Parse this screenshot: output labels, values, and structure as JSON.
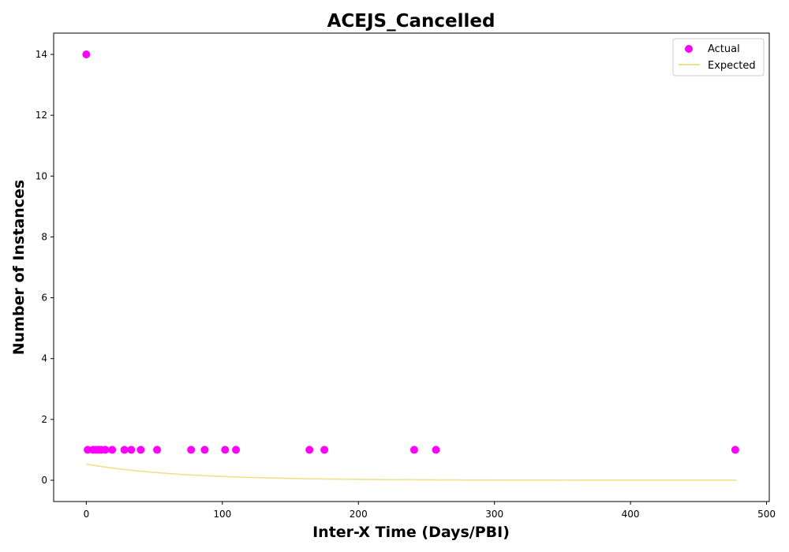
{
  "chart_data": {
    "type": "scatter",
    "title": "ACEJS_Cancelled",
    "xlabel": "Inter-X Time (Days/PBI)",
    "ylabel": "Number of Instances",
    "xlim": [
      -24,
      502
    ],
    "ylim": [
      -0.7,
      14.7
    ],
    "xticks": [
      0,
      100,
      200,
      300,
      400,
      500
    ],
    "yticks": [
      0,
      2,
      4,
      6,
      8,
      10,
      12,
      14
    ],
    "grid": false,
    "legend_position": "top-right",
    "series": [
      {
        "name": "Actual",
        "kind": "scatter",
        "color": "#ff00ff",
        "points": [
          [
            0,
            14
          ],
          [
            1,
            1
          ],
          [
            5,
            1
          ],
          [
            7,
            1
          ],
          [
            9,
            1
          ],
          [
            11,
            1
          ],
          [
            14,
            1
          ],
          [
            19,
            1
          ],
          [
            28,
            1
          ],
          [
            33,
            1
          ],
          [
            40,
            1
          ],
          [
            52,
            1
          ],
          [
            77,
            1
          ],
          [
            87,
            1
          ],
          [
            102,
            1
          ],
          [
            110,
            1
          ],
          [
            164,
            1
          ],
          [
            175,
            1
          ],
          [
            241,
            1
          ],
          [
            257,
            1
          ],
          [
            477,
            1
          ]
        ]
      },
      {
        "name": "Expected",
        "kind": "line",
        "color": "#f0e08a",
        "curve": {
          "model": "exponential",
          "a": 0.53,
          "rate": 0.0145,
          "x_start": 0,
          "x_end": 478
        }
      }
    ]
  }
}
